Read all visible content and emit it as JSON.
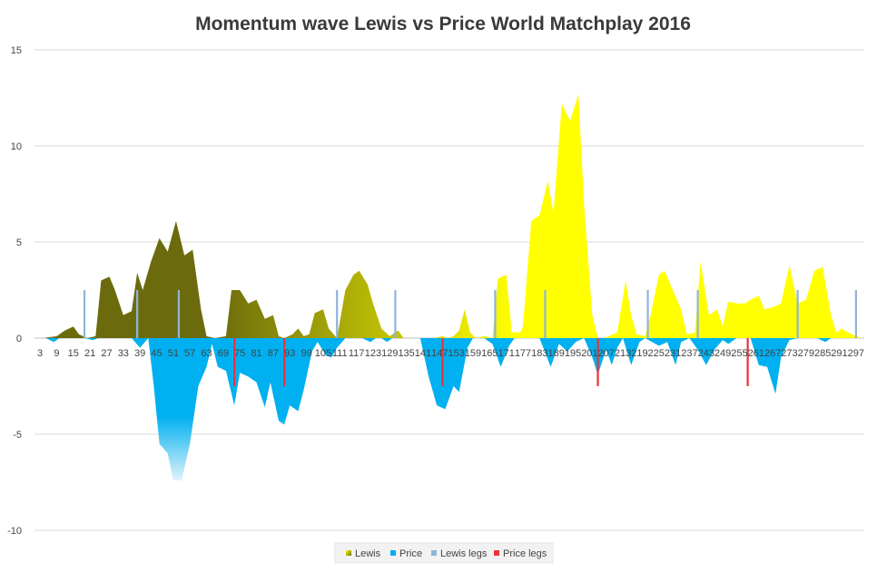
{
  "chart_data": {
    "type": "area",
    "title": "Momentum wave Lewis vs Price World Matchplay 2016",
    "xlabel": "",
    "ylabel": "",
    "ylim": [
      -10,
      15
    ],
    "y_ticks": [
      "15",
      "10",
      "5",
      "0",
      "-5",
      "-10"
    ],
    "x_range": [
      1,
      300
    ],
    "x_tick_labels": [
      "3",
      "9",
      "15",
      "21",
      "27",
      "33",
      "39",
      "45",
      "51",
      "57",
      "63",
      "69",
      "75",
      "81",
      "87",
      "93",
      "99",
      "105",
      "111",
      "117",
      "123",
      "129",
      "135",
      "141",
      "147",
      "153",
      "159",
      "165",
      "171",
      "177",
      "183",
      "189",
      "195",
      "201",
      "207",
      "213",
      "219",
      "225",
      "231",
      "237",
      "243",
      "249",
      "255",
      "261",
      "267",
      "273",
      "279",
      "285",
      "291",
      "297"
    ],
    "series": [
      {
        "name": "Lewis",
        "kind": "area",
        "points": [
          [
            1,
            0
          ],
          [
            4,
            0
          ],
          [
            9,
            0.1
          ],
          [
            12,
            0.4
          ],
          [
            15,
            0.6
          ],
          [
            17,
            0.2
          ],
          [
            20,
            0
          ],
          [
            23,
            0.1
          ],
          [
            25,
            3.0
          ],
          [
            28,
            3.2
          ],
          [
            30,
            2.5
          ],
          [
            33,
            1.2
          ],
          [
            36,
            1.4
          ],
          [
            38,
            3.4
          ],
          [
            40,
            2.5
          ],
          [
            43,
            4.0
          ],
          [
            46,
            5.2
          ],
          [
            49,
            4.5
          ],
          [
            52,
            6.1
          ],
          [
            55,
            4.3
          ],
          [
            58,
            4.6
          ],
          [
            61,
            1.5
          ],
          [
            63,
            0.1
          ],
          [
            66,
            0
          ],
          [
            70,
            0.1
          ],
          [
            72,
            2.5
          ],
          [
            75,
            2.5
          ],
          [
            78,
            1.8
          ],
          [
            81,
            2.0
          ],
          [
            84,
            1.0
          ],
          [
            87,
            1.2
          ],
          [
            89,
            0.1
          ],
          [
            91,
            0
          ],
          [
            94,
            0.2
          ],
          [
            96,
            0.5
          ],
          [
            98,
            0.1
          ],
          [
            100,
            0.2
          ],
          [
            102,
            1.3
          ],
          [
            105,
            1.5
          ],
          [
            107,
            0.5
          ],
          [
            110,
            0
          ],
          [
            113,
            2.5
          ],
          [
            116,
            3.3
          ],
          [
            118,
            3.5
          ],
          [
            121,
            2.8
          ],
          [
            123,
            1.8
          ],
          [
            126,
            0.5
          ],
          [
            129,
            0.1
          ],
          [
            132,
            0.4
          ],
          [
            134,
            0
          ],
          [
            145,
            0
          ],
          [
            148,
            0.1
          ],
          [
            150,
            0
          ],
          [
            152,
            0.1
          ],
          [
            154,
            0.4
          ],
          [
            156,
            1.5
          ],
          [
            158,
            0.3
          ],
          [
            160,
            0
          ],
          [
            163,
            0.1
          ],
          [
            166,
            0
          ],
          [
            168,
            3.1
          ],
          [
            171,
            3.3
          ],
          [
            173,
            0.3
          ],
          [
            176,
            0.3
          ],
          [
            177,
            0.6
          ],
          [
            180,
            6.1
          ],
          [
            183,
            6.4
          ],
          [
            186,
            8.2
          ],
          [
            188,
            6.5
          ],
          [
            191,
            12.2
          ],
          [
            194,
            11.3
          ],
          [
            197,
            12.7
          ],
          [
            199,
            7.0
          ],
          [
            202,
            1.2
          ],
          [
            204,
            0
          ],
          [
            206,
            0
          ],
          [
            208,
            0.1
          ],
          [
            211,
            0.3
          ],
          [
            214,
            3.0
          ],
          [
            216,
            1.2
          ],
          [
            218,
            0.2
          ],
          [
            221,
            0.1
          ],
          [
            223,
            1.2
          ],
          [
            226,
            3.3
          ],
          [
            228,
            3.5
          ],
          [
            231,
            2.5
          ],
          [
            234,
            1.5
          ],
          [
            236,
            0.2
          ],
          [
            239,
            0.3
          ],
          [
            241,
            4.0
          ],
          [
            244,
            1.2
          ],
          [
            247,
            1.5
          ],
          [
            249,
            0.6
          ],
          [
            251,
            1.9
          ],
          [
            254,
            1.8
          ],
          [
            257,
            1.8
          ],
          [
            259,
            2.0
          ],
          [
            262,
            2.2
          ],
          [
            264,
            1.5
          ],
          [
            267,
            1.6
          ],
          [
            270,
            1.8
          ],
          [
            273,
            3.8
          ],
          [
            276,
            1.8
          ],
          [
            279,
            2.0
          ],
          [
            282,
            3.5
          ],
          [
            285,
            3.7
          ],
          [
            288,
            1.2
          ],
          [
            290,
            0.3
          ],
          [
            292,
            0.5
          ],
          [
            294,
            0.3
          ],
          [
            299,
            0
          ]
        ]
      },
      {
        "name": "Price",
        "kind": "area",
        "points": [
          [
            1,
            0
          ],
          [
            5,
            0
          ],
          [
            8,
            -0.2
          ],
          [
            10,
            0
          ],
          [
            19,
            0
          ],
          [
            22,
            -0.1
          ],
          [
            24,
            0
          ],
          [
            36,
            0
          ],
          [
            39,
            -0.5
          ],
          [
            42,
            0
          ],
          [
            44,
            -2.5
          ],
          [
            46,
            -5.5
          ],
          [
            49,
            -6.0
          ],
          [
            51,
            -7.4
          ],
          [
            54,
            -7.4
          ],
          [
            57,
            -5.5
          ],
          [
            60,
            -2.5
          ],
          [
            63,
            -1.5
          ],
          [
            65,
            -0.3
          ],
          [
            67,
            -1.5
          ],
          [
            70,
            -1.7
          ],
          [
            73,
            -3.5
          ],
          [
            75,
            -1.8
          ],
          [
            78,
            -2.0
          ],
          [
            81,
            -2.3
          ],
          [
            84,
            -3.6
          ],
          [
            86,
            -2.3
          ],
          [
            89,
            -4.3
          ],
          [
            91,
            -4.5
          ],
          [
            93,
            -3.5
          ],
          [
            96,
            -3.8
          ],
          [
            98,
            -2.7
          ],
          [
            101,
            -0.7
          ],
          [
            103,
            -0.2
          ],
          [
            106,
            -0.9
          ],
          [
            108,
            -1.0
          ],
          [
            110,
            -0.5
          ],
          [
            113,
            0
          ],
          [
            119,
            0
          ],
          [
            122,
            -0.2
          ],
          [
            124,
            0
          ],
          [
            126,
            0
          ],
          [
            128,
            -0.2
          ],
          [
            130,
            0
          ],
          [
            140,
            0
          ],
          [
            143,
            -2.0
          ],
          [
            146,
            -3.5
          ],
          [
            149,
            -3.7
          ],
          [
            152,
            -2.5
          ],
          [
            154,
            -2.8
          ],
          [
            157,
            -0.5
          ],
          [
            159,
            0
          ],
          [
            163,
            0
          ],
          [
            166,
            -0.3
          ],
          [
            169,
            -1.5
          ],
          [
            172,
            -0.4
          ],
          [
            174,
            0
          ],
          [
            183,
            0
          ],
          [
            187,
            -1.5
          ],
          [
            190,
            -0.3
          ],
          [
            193,
            -0.7
          ],
          [
            196,
            -0.2
          ],
          [
            199,
            0
          ],
          [
            202,
            -1.0
          ],
          [
            204,
            -1.9
          ],
          [
            207,
            -0.6
          ],
          [
            209,
            -1.4
          ],
          [
            211,
            -0.5
          ],
          [
            213,
            0
          ],
          [
            216,
            -1.4
          ],
          [
            219,
            -0.2
          ],
          [
            221,
            0
          ],
          [
            226,
            -0.4
          ],
          [
            229,
            -0.2
          ],
          [
            232,
            -1.4
          ],
          [
            234,
            -0.2
          ],
          [
            237,
            0
          ],
          [
            240,
            -0.6
          ],
          [
            243,
            -1.4
          ],
          [
            246,
            -0.6
          ],
          [
            249,
            -0.1
          ],
          [
            251,
            -0.3
          ],
          [
            254,
            0
          ],
          [
            259,
            0
          ],
          [
            262,
            -1.4
          ],
          [
            265,
            -1.5
          ],
          [
            268,
            -2.9
          ],
          [
            270,
            -1.0
          ],
          [
            273,
            -0.1
          ],
          [
            276,
            0
          ],
          [
            283,
            0
          ],
          [
            286,
            -0.2
          ],
          [
            288,
            0
          ],
          [
            299,
            0
          ]
        ]
      },
      {
        "name": "Lewis legs",
        "kind": "vertical-lines",
        "x": [
          19,
          38,
          53,
          110,
          131,
          167,
          185,
          222,
          240,
          276,
          297
        ],
        "value": 2.5
      },
      {
        "name": "Price legs",
        "kind": "vertical-lines",
        "x": [
          73,
          91,
          148,
          204,
          258
        ],
        "value": -2.5
      }
    ],
    "colors": {
      "lewis_light": "#ffff00",
      "lewis_dark": "#6b6b0d",
      "price_top": "#00b0f0",
      "price_bottom": "#dff3fb",
      "lewis_legs": "#8fb4d8",
      "price_legs": "#e8333a",
      "grid": "#d9d9d9"
    },
    "legend_position": "bottom-center"
  }
}
